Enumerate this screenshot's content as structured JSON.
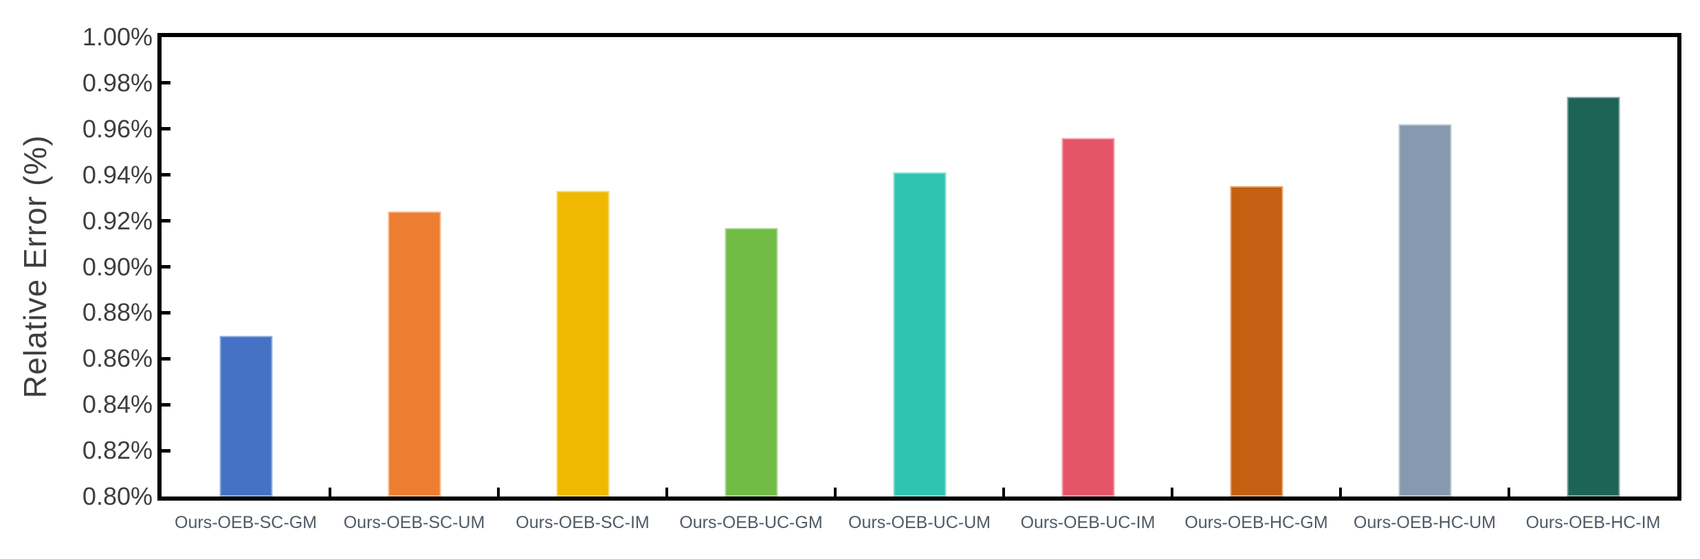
{
  "figure": {
    "background": "#ffffff",
    "frame_color": "#000000",
    "tick_color": "#000000",
    "y_tick_label_color": "#3e3e3e",
    "x_tick_label_color": "#4f5a66",
    "axis_title_color": "#3f3f3f"
  },
  "chart_data": {
    "type": "bar",
    "title": "",
    "xlabel": "",
    "ylabel": "Relative Error (%)",
    "ylim": [
      0.8,
      1.0
    ],
    "ytick_step": 0.02,
    "ytick_labels": [
      "0.80%",
      "0.82%",
      "0.84%",
      "0.86%",
      "0.88%",
      "0.90%",
      "0.92%",
      "0.94%",
      "0.96%",
      "0.98%",
      "1.00%"
    ],
    "categories": [
      "Ours-OEB-SC-GM",
      "Ours-OEB-SC-UM",
      "Ours-OEB-SC-IM",
      "Ours-OEB-UC-GM",
      "Ours-OEB-UC-UM",
      "Ours-OEB-UC-IM",
      "Ours-OEB-HC-GM",
      "Ours-OEB-HC-UM",
      "Ours-OEB-HC-IM"
    ],
    "values": [
      0.87,
      0.924,
      0.933,
      0.917,
      0.941,
      0.956,
      0.935,
      0.962,
      0.974
    ],
    "colors": [
      "#4472C4",
      "#ED7D31",
      "#F0B800",
      "#70BC44",
      "#2FC3B4",
      "#E4556A",
      "#C55F11",
      "#8799AE",
      "#1D6457"
    ],
    "grid": false,
    "legend_position": "none",
    "value_unit": "%"
  }
}
